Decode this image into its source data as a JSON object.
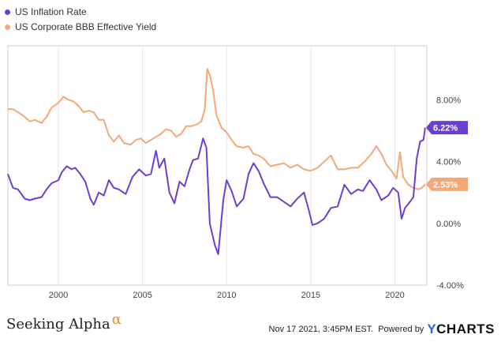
{
  "chart_data": {
    "type": "line",
    "title": "",
    "xlabel": "",
    "ylabel": "",
    "xlim": [
      1997.0,
      2021.9
    ],
    "ylim": [
      -4.0,
      11.5
    ],
    "x_ticks": [
      2000,
      2005,
      2010,
      2015,
      2020
    ],
    "x_tick_labels": [
      "2000",
      "2005",
      "2010",
      "2015",
      "2020"
    ],
    "y_ticks": [
      -4,
      0,
      4,
      8
    ],
    "y_tick_labels": [
      "-4.00%",
      "0.00%",
      "4.00%",
      "8.00%"
    ],
    "grid": "vertical",
    "legend_position": "top-left",
    "series": [
      {
        "name": "US Inflation Rate",
        "color": "#6b3fd1",
        "end_label": "6.22%",
        "x": [
          1997.0,
          1997.3,
          1997.6,
          1998.0,
          1998.3,
          1998.6,
          1999.0,
          1999.3,
          1999.6,
          2000.0,
          2000.2,
          2000.5,
          2000.8,
          2001.0,
          2001.3,
          2001.6,
          2001.9,
          2002.1,
          2002.4,
          2002.7,
          2003.0,
          2003.3,
          2003.6,
          2004.0,
          2004.4,
          2004.8,
          2005.2,
          2005.5,
          2005.8,
          2006.0,
          2006.3,
          2006.6,
          2006.9,
          2007.2,
          2007.5,
          2007.8,
          2008.0,
          2008.3,
          2008.6,
          2008.8,
          2009.0,
          2009.3,
          2009.5,
          2009.8,
          2010.0,
          2010.3,
          2010.6,
          2011.0,
          2011.3,
          2011.6,
          2011.9,
          2012.2,
          2012.6,
          2013.0,
          2013.4,
          2013.8,
          2014.2,
          2014.6,
          2014.9,
          2015.1,
          2015.4,
          2015.8,
          2016.2,
          2016.6,
          2017.0,
          2017.4,
          2017.8,
          2018.1,
          2018.5,
          2018.9,
          2019.2,
          2019.6,
          2019.9,
          2020.2,
          2020.4,
          2020.6,
          2020.9,
          2021.1,
          2021.3,
          2021.5,
          2021.7,
          2021.8
        ],
        "y": [
          3.2,
          2.3,
          2.2,
          1.6,
          1.5,
          1.6,
          1.7,
          2.2,
          2.6,
          2.8,
          3.3,
          3.7,
          3.5,
          3.6,
          3.2,
          2.7,
          1.6,
          1.2,
          2.0,
          1.8,
          2.8,
          2.3,
          2.2,
          1.9,
          3.0,
          3.5,
          3.1,
          3.2,
          4.7,
          3.6,
          4.2,
          2.0,
          1.3,
          2.7,
          2.4,
          3.5,
          4.1,
          4.2,
          5.5,
          4.9,
          0.0,
          -1.4,
          -2.0,
          1.5,
          2.8,
          2.1,
          1.1,
          1.6,
          3.2,
          3.9,
          3.4,
          2.6,
          1.7,
          1.7,
          1.4,
          1.1,
          1.6,
          2.0,
          0.8,
          -0.1,
          0.0,
          0.3,
          1.0,
          1.1,
          2.5,
          1.9,
          2.2,
          2.1,
          2.8,
          2.2,
          1.5,
          1.8,
          2.3,
          2.0,
          0.3,
          1.0,
          1.4,
          1.7,
          4.2,
          5.3,
          5.4,
          6.2
        ]
      },
      {
        "name": "US Corporate BBB Effective Yield",
        "color": "#f5a876",
        "end_label": "2.53%",
        "x": [
          1997.0,
          1997.3,
          1997.6,
          1998.0,
          1998.3,
          1998.6,
          1999.0,
          1999.3,
          1999.6,
          2000.0,
          2000.3,
          2000.6,
          2000.9,
          2001.2,
          2001.5,
          2001.8,
          2002.1,
          2002.4,
          2002.7,
          2003.0,
          2003.3,
          2003.6,
          2003.9,
          2004.3,
          2004.6,
          2004.9,
          2005.2,
          2005.5,
          2005.8,
          2006.1,
          2006.4,
          2006.7,
          2007.0,
          2007.3,
          2007.6,
          2007.9,
          2008.2,
          2008.5,
          2008.7,
          2008.85,
          2009.0,
          2009.2,
          2009.4,
          2009.7,
          2010.0,
          2010.3,
          2010.6,
          2011.0,
          2011.3,
          2011.6,
          2011.9,
          2012.2,
          2012.6,
          2013.0,
          2013.4,
          2013.8,
          2014.2,
          2014.6,
          2015.0,
          2015.4,
          2015.8,
          2016.2,
          2016.6,
          2017.0,
          2017.4,
          2017.8,
          2018.2,
          2018.6,
          2018.9,
          2019.2,
          2019.5,
          2019.8,
          2020.1,
          2020.3,
          2020.5,
          2020.8,
          2021.1,
          2021.4,
          2021.6,
          2021.8
        ],
        "y": [
          7.4,
          7.4,
          7.2,
          6.9,
          6.6,
          6.7,
          6.5,
          6.9,
          7.5,
          7.8,
          8.2,
          8.0,
          7.9,
          7.6,
          7.2,
          7.3,
          7.2,
          6.7,
          6.7,
          5.7,
          5.3,
          5.7,
          5.2,
          5.1,
          5.4,
          5.5,
          5.2,
          5.4,
          5.6,
          5.8,
          6.1,
          6.0,
          5.6,
          5.8,
          6.3,
          6.3,
          6.4,
          6.6,
          7.4,
          10.0,
          9.6,
          8.6,
          7.0,
          6.2,
          5.9,
          5.4,
          5.0,
          4.9,
          5.0,
          4.5,
          4.4,
          4.2,
          3.7,
          3.8,
          3.9,
          3.6,
          3.8,
          3.5,
          3.4,
          3.6,
          4.0,
          4.4,
          3.5,
          3.5,
          3.6,
          3.6,
          4.0,
          4.5,
          5.0,
          4.5,
          3.8,
          3.4,
          2.9,
          4.6,
          3.0,
          2.5,
          2.3,
          2.2,
          2.3,
          2.53
        ]
      }
    ]
  },
  "footer": {
    "brand": "Seeking Alpha",
    "brand_mark": "α",
    "timestamp": "Nov 17 2021, 3:45PM EST.",
    "powered_by": "Powered by",
    "provider_y": "Y",
    "provider_rest": "CHARTS"
  }
}
